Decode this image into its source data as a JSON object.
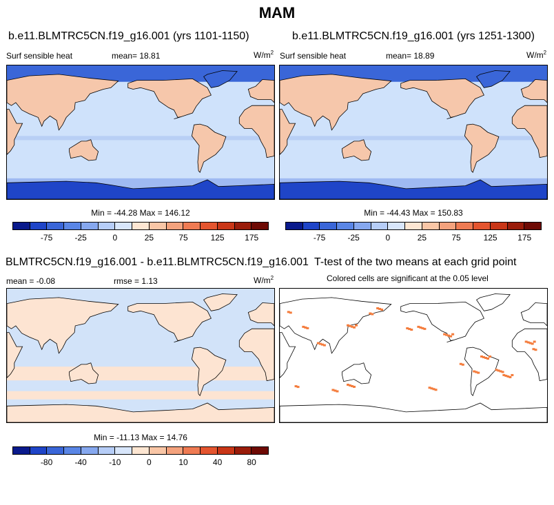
{
  "title": "MAM",
  "panels": [
    {
      "title": "b.e11.BLMTRC5CN.f19_g16.001 (yrs 1101-1150)",
      "variable": "Surf sensible heat",
      "mean_label": "mean=",
      "mean_value": "18.81",
      "unit": "W/m",
      "unit_exp": "2",
      "minmax": "Min = -44.28 Max = 146.12",
      "colorbar": {
        "labels": [
          "-75",
          "-25",
          "0",
          "25",
          "75",
          "125",
          "175"
        ],
        "colors": [
          "#0a1a8c",
          "#1f45c8",
          "#3a66d8",
          "#5a86e6",
          "#86a8ef",
          "#b6cdf7",
          "#d8e6fb",
          "#fde6d2",
          "#f9c6a6",
          "#f4a27d",
          "#ef7b53",
          "#e4552f",
          "#c93617",
          "#9a1c0a",
          "#6e0a04"
        ]
      }
    },
    {
      "title": "b.e11.BLMTRC5CN.f19_g16.001 (yrs 1251-1300)",
      "variable": "Surf sensible heat",
      "mean_label": "mean=",
      "mean_value": "18.89",
      "unit": "W/m",
      "unit_exp": "2",
      "minmax": "Min = -44.43 Max = 150.83",
      "colorbar": {
        "labels": [
          "-75",
          "-25",
          "0",
          "25",
          "75",
          "125",
          "175"
        ],
        "colors": [
          "#0a1a8c",
          "#1f45c8",
          "#3a66d8",
          "#5a86e6",
          "#86a8ef",
          "#b6cdf7",
          "#d8e6fb",
          "#fde6d2",
          "#f9c6a6",
          "#f4a27d",
          "#ef7b53",
          "#e4552f",
          "#c93617",
          "#9a1c0a",
          "#6e0a04"
        ]
      }
    },
    {
      "title": "BLMTRC5CN.f19_g16.001 - b.e11.BLMTRC5CN.f19_g16.001",
      "mean_label": "mean =",
      "mean_value": "-0.08",
      "rmse_label": "rmse =",
      "rmse_value": "1.13",
      "unit": "W/m",
      "unit_exp": "2",
      "minmax": "Min = -11.13 Max = 14.76",
      "colorbar": {
        "labels": [
          "-80",
          "-40",
          "-10",
          "0",
          "10",
          "40",
          "80"
        ],
        "colors": [
          "#0a1a8c",
          "#1f45c8",
          "#3a66d8",
          "#5a86e6",
          "#86a8ef",
          "#b6cdf7",
          "#d8e6fb",
          "#fde6d2",
          "#f9c6a6",
          "#f4a27d",
          "#ef7b53",
          "#e4552f",
          "#c93617",
          "#9a1c0a",
          "#6e0a04"
        ]
      }
    },
    {
      "title": "T-test of the two means at each grid point",
      "subtitle": "Colored cells are significant at the 0.05 level"
    }
  ],
  "colors": {
    "ocean": "#cfe2fb",
    "land_warm": "#f6c7ab",
    "land_light": "#fde3d1",
    "ice_cold": "#3a66d8",
    "ice_deep": "#1f45c8",
    "diff_ocean": "#d2e3f9",
    "diff_land": "#fde4d2",
    "significant": "#f47c3c"
  }
}
